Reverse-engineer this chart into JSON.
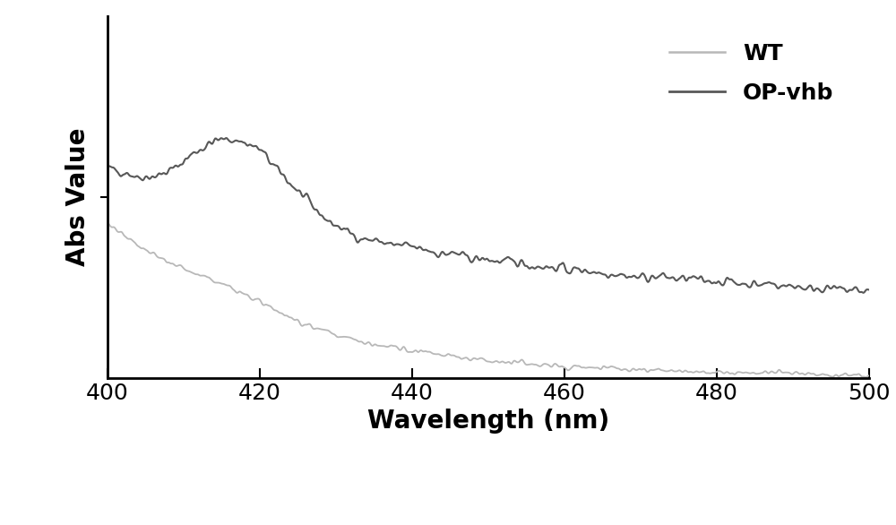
{
  "xlabel": "Wavelength (nm)",
  "ylabel": "Abs Value",
  "xlim": [
    400,
    500
  ],
  "ylim": [
    0,
    1.0
  ],
  "x_ticks": [
    400,
    420,
    440,
    460,
    480,
    500
  ],
  "legend_labels": [
    "WT",
    "OP-vhb"
  ],
  "wt_color": "#b8b8b8",
  "opvhb_color": "#585858",
  "wt_linewidth": 1.3,
  "opvhb_linewidth": 1.5,
  "xlabel_fontsize": 20,
  "ylabel_fontsize": 20,
  "tick_fontsize": 18,
  "legend_fontsize": 18,
  "background_color": "#ffffff",
  "seed": 42
}
